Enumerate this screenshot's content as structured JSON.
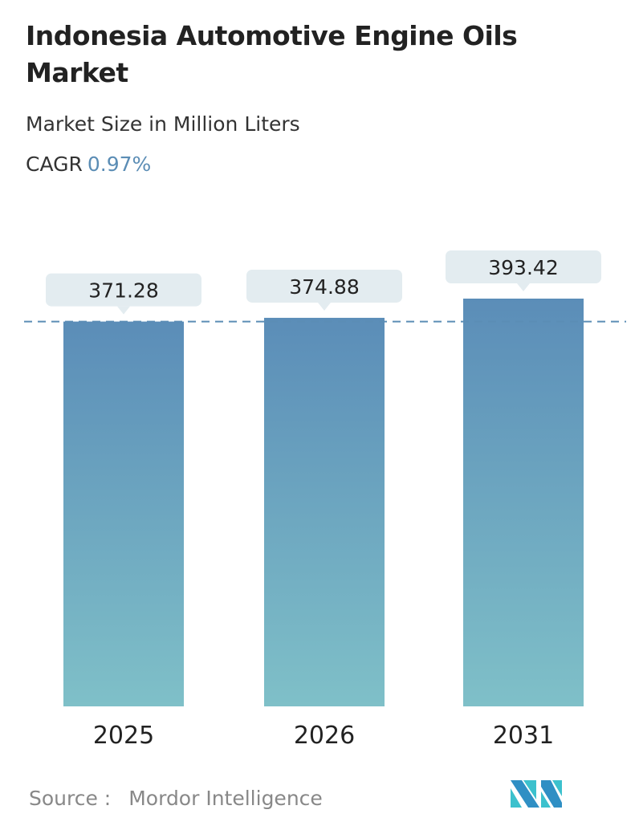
{
  "header": {
    "title": "Indonesia Automotive Engine Oils Market",
    "subtitle": "Market Size in Million Liters",
    "cagr_label": "CAGR",
    "cagr_value": "0.97%"
  },
  "chart_data": {
    "type": "bar",
    "categories": [
      "2025",
      "2026",
      "2031"
    ],
    "values": [
      371.28,
      374.88,
      393.42
    ],
    "data_labels": [
      "371.28",
      "374.88",
      "393.42"
    ],
    "ylim": [
      0,
      393.42
    ],
    "reference_line": 371.28,
    "colors": {
      "bar_top": "#5b8db8",
      "bar_bottom": "#7fc0c8",
      "label_bg": "#e3ecf0",
      "dashed_line": "#5b8db5"
    }
  },
  "footer": {
    "source_label": "Source :",
    "source_value": "Mordor Intelligence",
    "logo_text": "Mordor Intelligence"
  }
}
